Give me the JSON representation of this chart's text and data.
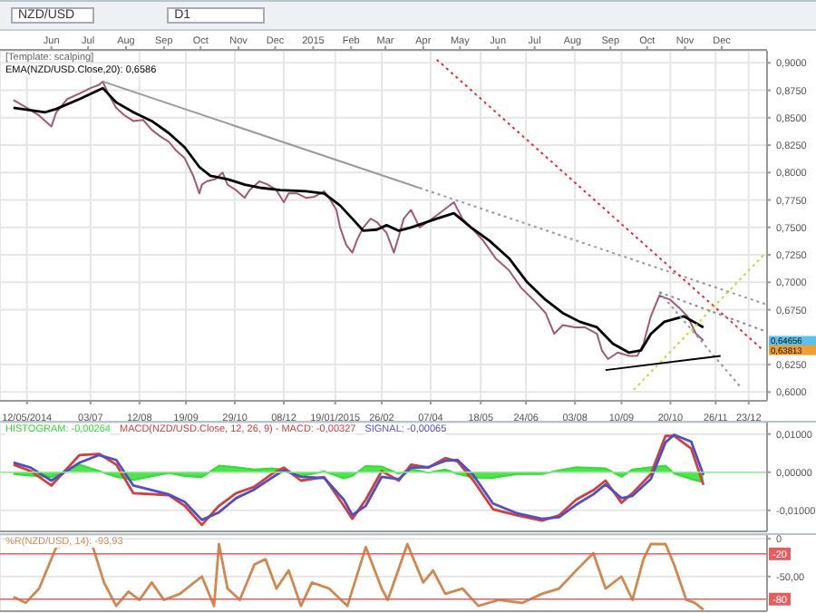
{
  "chart_data": [
    {
      "type": "line",
      "title": "NZD/USD",
      "subtitle": "D1",
      "annotations": [
        "[Template: scalping]",
        {
          "text": "0,64656",
          "x": "2016-01-07",
          "y": 0.64656
        },
        {
          "text": "0,63813",
          "x": "2016-01-07",
          "y": 0.63813
        }
      ],
      "xlim": [
        "2014-04-20",
        "2016-01-07"
      ],
      "x2lim": [
        "2014-04-20",
        "2016-01-07"
      ],
      "xticks": [
        {
          "value": "2014-05-12",
          "label": "12/05/2014"
        },
        {
          "value": "2014-07-03",
          "label": "03/07"
        },
        {
          "value": "2014-08-12",
          "label": "12/08"
        },
        {
          "value": "2014-09-19",
          "label": "19/09"
        },
        {
          "value": "2014-10-29",
          "label": "29/10"
        },
        {
          "value": "2014-12-08",
          "label": "08/12"
        },
        {
          "value": "2015-01-19",
          "label": "19/01/2015"
        },
        {
          "value": "2015-02-26",
          "label": "26/02"
        },
        {
          "value": "2015-04-07",
          "label": "07/04"
        },
        {
          "value": "2015-05-18",
          "label": "18/05"
        },
        {
          "value": "2015-06-24",
          "label": "24/06"
        },
        {
          "value": "2015-08-03",
          "label": "03/08"
        },
        {
          "value": "2015-09-10",
          "label": "10/09"
        },
        {
          "value": "2015-10-20",
          "label": "20/10"
        },
        {
          "value": "2015-11-26",
          "label": "26/11"
        },
        {
          "value": "2015-12-23",
          "label": "23/12"
        }
      ],
      "x2ticks": [
        {
          "value": "2014-06-01",
          "label": "Jun"
        },
        {
          "value": "2014-07-01",
          "label": "Jul"
        },
        {
          "value": "2014-08-01",
          "label": "Aug"
        },
        {
          "value": "2014-09-01",
          "label": "Sep"
        },
        {
          "value": "2014-10-01",
          "label": "Oct"
        },
        {
          "value": "2014-11-01",
          "label": "Nov"
        },
        {
          "value": "2014-12-01",
          "label": "Dec"
        },
        {
          "value": "2015-01-01",
          "label": "2015"
        },
        {
          "value": "2015-02-01",
          "label": "Feb"
        },
        {
          "value": "2015-03-01",
          "label": "Mar"
        },
        {
          "value": "2015-04-01",
          "label": "Apr"
        },
        {
          "value": "2015-05-01",
          "label": "May"
        },
        {
          "value": "2015-06-01",
          "label": "Jun"
        },
        {
          "value": "2015-07-01",
          "label": "Jul"
        },
        {
          "value": "2015-08-01",
          "label": "Aug"
        },
        {
          "value": "2015-09-01",
          "label": "Sep"
        },
        {
          "value": "2015-10-01",
          "label": "Oct"
        },
        {
          "value": "2015-11-01",
          "label": "Nov"
        },
        {
          "value": "2015-12-01",
          "label": "Dec"
        }
      ],
      "ylim": [
        0.592,
        0.911
      ],
      "yticks": [
        {
          "value": 0.6,
          "label": "0,6000"
        },
        {
          "value": 0.625,
          "label": "0,6250"
        },
        {
          "value": 0.675,
          "label": "0,6750"
        },
        {
          "value": 0.7,
          "label": "0,7000"
        },
        {
          "value": 0.725,
          "label": "0,7250"
        },
        {
          "value": 0.75,
          "label": "0,7500"
        },
        {
          "value": 0.775,
          "label": "0,7750"
        },
        {
          "value": 0.8,
          "label": "0,8000"
        },
        {
          "value": 0.825,
          "label": "0,8250"
        },
        {
          "value": 0.85,
          "label": "0,8500"
        },
        {
          "value": 0.875,
          "label": "0,8750"
        },
        {
          "value": 0.9,
          "label": "0,9000"
        }
      ],
      "grid": true,
      "series": [
        {
          "color": "#a05a78",
          "x": [
            "2014-05-01",
            "2014-05-12",
            "2014-05-22",
            "2014-06-01",
            "2014-06-05",
            "2014-06-14",
            "2014-06-24",
            "2014-07-03",
            "2014-07-10",
            "2014-07-13",
            "2014-07-17",
            "2014-07-24",
            "2014-07-31",
            "2014-08-07",
            "2014-08-15",
            "2014-08-22",
            "2014-08-29",
            "2014-09-05",
            "2014-09-11",
            "2014-09-18",
            "2014-09-25",
            "2014-09-30",
            "2014-10-02",
            "2014-10-06",
            "2014-10-13",
            "2014-10-19",
            "2014-10-23",
            "2014-10-30",
            "2014-11-06",
            "2014-11-10",
            "2014-11-18",
            "2014-11-25",
            "2014-12-02",
            "2014-12-08",
            "2014-12-12",
            "2014-12-19",
            "2014-12-26",
            "2015-01-02",
            "2015-01-10",
            "2015-01-14",
            "2015-01-20",
            "2015-01-23",
            "2015-01-28",
            "2015-02-02",
            "2015-02-06",
            "2015-02-11",
            "2015-02-17",
            "2015-02-22",
            "2015-02-26",
            "2015-03-02",
            "2015-03-08",
            "2015-03-12",
            "2015-03-16",
            "2015-03-22",
            "2015-03-29",
            "2015-04-12",
            "2015-04-26",
            "2015-05-03",
            "2015-05-10",
            "2015-05-20",
            "2015-05-30",
            "2015-06-10",
            "2015-06-20",
            "2015-06-30",
            "2015-07-10",
            "2015-07-17",
            "2015-07-24",
            "2015-08-03",
            "2015-08-11",
            "2015-08-21",
            "2015-08-25",
            "2015-08-30",
            "2015-09-07",
            "2015-09-16",
            "2015-09-23",
            "2015-09-28",
            "2015-10-04",
            "2015-10-11",
            "2015-10-20",
            "2015-10-27",
            "2015-11-03",
            "2015-11-10",
            "2015-11-16"
          ],
          "values": [
            0.866,
            0.859,
            0.852,
            0.842,
            0.855,
            0.867,
            0.872,
            0.877,
            0.88,
            0.883,
            0.873,
            0.859,
            0.852,
            0.847,
            0.848,
            0.839,
            0.833,
            0.828,
            0.82,
            0.813,
            0.797,
            0.781,
            0.789,
            0.792,
            0.794,
            0.8,
            0.789,
            0.784,
            0.777,
            0.784,
            0.792,
            0.789,
            0.784,
            0.773,
            0.781,
            0.781,
            0.777,
            0.778,
            0.783,
            0.777,
            0.766,
            0.75,
            0.734,
            0.727,
            0.739,
            0.75,
            0.758,
            0.755,
            0.75,
            0.745,
            0.727,
            0.742,
            0.758,
            0.766,
            0.75,
            0.761,
            0.773,
            0.758,
            0.75,
            0.738,
            0.722,
            0.711,
            0.695,
            0.684,
            0.672,
            0.653,
            0.661,
            0.659,
            0.659,
            0.653,
            0.638,
            0.63,
            0.636,
            0.633,
            0.633,
            0.644,
            0.669,
            0.688,
            0.684,
            0.677,
            0.669,
            0.653,
            0.647
          ]
        },
        {
          "name": "EMA(NZD/USD.Close,20): 0,6586",
          "color": "#000000",
          "x": [
            "2014-05-01",
            "2014-05-27",
            "2014-06-05",
            "2014-06-24",
            "2014-07-13",
            "2014-07-24",
            "2014-08-07",
            "2014-08-22",
            "2014-09-05",
            "2014-09-18",
            "2014-09-30",
            "2014-10-09",
            "2014-10-23",
            "2014-11-06",
            "2014-11-20",
            "2014-12-05",
            "2014-12-26",
            "2015-01-10",
            "2015-01-23",
            "2015-02-02",
            "2015-02-11",
            "2015-02-22",
            "2015-03-02",
            "2015-03-12",
            "2015-03-22",
            "2015-04-12",
            "2015-04-26",
            "2015-05-10",
            "2015-05-25",
            "2015-06-10",
            "2015-06-25",
            "2015-07-10",
            "2015-07-24",
            "2015-08-07",
            "2015-08-21",
            "2015-09-03",
            "2015-09-16",
            "2015-09-26",
            "2015-10-04",
            "2015-10-15",
            "2015-10-31",
            "2015-11-08",
            "2015-11-16"
          ],
          "values": [
            0.859,
            0.855,
            0.858,
            0.867,
            0.877,
            0.864,
            0.855,
            0.847,
            0.836,
            0.823,
            0.805,
            0.797,
            0.794,
            0.789,
            0.786,
            0.784,
            0.783,
            0.781,
            0.77,
            0.758,
            0.747,
            0.748,
            0.752,
            0.747,
            0.75,
            0.758,
            0.763,
            0.75,
            0.738,
            0.722,
            0.7,
            0.684,
            0.672,
            0.664,
            0.659,
            0.644,
            0.636,
            0.638,
            0.653,
            0.664,
            0.669,
            0.664,
            0.659
          ]
        },
        {
          "color": "#9a9a9a",
          "x": [
            "2014-07-13",
            "2015-03-29"
          ],
          "values": [
            0.883,
            0.786
          ]
        },
        {
          "color": "#9a9a9a",
          "line_style": "dotted",
          "x": [
            "2015-03-29",
            "2016-01-06"
          ],
          "values": [
            0.786,
            0.68
          ]
        },
        {
          "color": "#e03030",
          "line_style": "dotted",
          "x": [
            "2015-04-12",
            "2016-01-04"
          ],
          "values": [
            0.903,
            0.638
          ]
        },
        {
          "color": "#d0d040",
          "line_style": "dotted",
          "x": [
            "2015-09-20",
            "2016-01-06"
          ],
          "values": [
            0.602,
            0.727
          ]
        },
        {
          "color": "#8a8a9a",
          "line_style": "dotted",
          "x": [
            "2015-10-11",
            "2016-01-04"
          ],
          "values": [
            0.691,
            0.656
          ]
        },
        {
          "color": "#8a9aaa",
          "line_style": "dotted",
          "x": [
            "2015-10-11",
            "2015-12-16"
          ],
          "values": [
            0.691,
            0.605
          ]
        },
        {
          "color": "#000000",
          "x": [
            "2015-08-28",
            "2015-11-30"
          ],
          "values": [
            0.62,
            0.633
          ]
        }
      ]
    },
    {
      "type": "line",
      "tick_labels": "y",
      "grid": true,
      "xlim": [
        "2014-04-20",
        "2016-01-07"
      ],
      "xticks": [
        {
          "value": "2014-05-12",
          "label": null
        },
        {
          "value": "2014-07-03",
          "label": null
        },
        {
          "value": "2014-08-12",
          "label": null
        },
        {
          "value": "2014-09-19",
          "label": null
        },
        {
          "value": "2014-10-29",
          "label": null
        },
        {
          "value": "2014-12-08",
          "label": null
        },
        {
          "value": "2015-01-19",
          "label": null
        },
        {
          "value": "2015-02-26",
          "label": null
        },
        {
          "value": "2015-04-07",
          "label": null
        },
        {
          "value": "2015-05-18",
          "label": null
        },
        {
          "value": "2015-06-24",
          "label": null
        },
        {
          "value": "2015-08-03",
          "label": null
        },
        {
          "value": "2015-09-10",
          "label": null
        },
        {
          "value": "2015-10-20",
          "label": null
        },
        {
          "value": "2015-11-26",
          "label": null
        },
        {
          "value": "2015-12-23",
          "label": null
        }
      ],
      "ylim": [
        -0.0155,
        0.013
      ],
      "yticks": [
        {
          "value": -0.01,
          "label": "-0,01000"
        },
        {
          "value": 0,
          "label": "0,00000"
        },
        {
          "value": 0.01,
          "label": "0,01000"
        }
      ],
      "ref_lines": [
        {
          "axis": "y",
          "value": 0,
          "color": "#9be89b"
        }
      ],
      "x": [
        "2014-05-01",
        "2014-05-15",
        "2014-06-01",
        "2014-06-24",
        "2014-07-10",
        "2014-07-24",
        "2014-08-07",
        "2014-09-05",
        "2014-09-18",
        "2014-10-02",
        "2014-10-16",
        "2014-10-30",
        "2014-11-14",
        "2014-11-28",
        "2014-12-08",
        "2014-12-22",
        "2015-01-10",
        "2015-01-26",
        "2015-02-02",
        "2015-02-13",
        "2015-02-26",
        "2015-03-12",
        "2015-03-22",
        "2015-04-05",
        "2015-04-19",
        "2015-04-29",
        "2015-05-12",
        "2015-05-28",
        "2015-06-17",
        "2015-07-07",
        "2015-07-21",
        "2015-08-04",
        "2015-08-18",
        "2015-08-28",
        "2015-09-10",
        "2015-09-19",
        "2015-10-04",
        "2015-10-16",
        "2015-10-23",
        "2015-11-06",
        "2015-11-16"
      ],
      "series": [
        {
          "name": "HISTOGRAM: -0,00264",
          "type": "area",
          "color": "#33dd33",
          "values": [
            -0.0005,
            -0.0009,
            -0.0013,
            0.002,
            0.0003,
            -0.0012,
            -0.002,
            -0.0002,
            -0.001,
            -0.0013,
            0.0017,
            0.0013,
            0.0007,
            0.001,
            0.0007,
            -0.001,
            0.0002,
            -0.0016,
            -0.001,
            0.0016,
            0.0015,
            -0.0004,
            0.0008,
            -0.0001,
            0.0007,
            -0.0004,
            -0.0014,
            -0.0015,
            -0.0005,
            -0.0005,
            0.0005,
            0.0013,
            0.0011,
            0.001,
            -0.0012,
            0.0007,
            0.0013,
            0.0017,
            -0.0003,
            -0.0018,
            -0.0026
          ]
        },
        {
          "name": "MACD(NZD/USD.Close, 12, 26, 9) - MACD: -0,00327",
          "color": "#d04040",
          "values": [
            0.002,
            0.0003,
            -0.0035,
            0.0045,
            0.0048,
            0.002,
            -0.0055,
            -0.006,
            -0.0088,
            -0.0138,
            -0.0088,
            -0.0055,
            -0.0038,
            -0.0005,
            0.0012,
            -0.0022,
            -0.0013,
            -0.0088,
            -0.0122,
            -0.0072,
            0.0003,
            -0.0022,
            0.002,
            0.0012,
            0.0037,
            0.0028,
            -0.0022,
            -0.0097,
            -0.0113,
            -0.0127,
            -0.0113,
            -0.0072,
            -0.0047,
            -0.0022,
            -0.008,
            -0.0055,
            -0.0005,
            0.0095,
            0.0095,
            0.0062,
            -0.0033
          ]
        },
        {
          "name": "SIGNAL: -0,00065",
          "color": "#5050c0",
          "values": [
            0.0025,
            0.0012,
            -0.0022,
            0.0025,
            0.0045,
            0.0032,
            -0.0035,
            -0.0058,
            -0.0078,
            -0.0125,
            -0.0105,
            -0.0068,
            -0.0045,
            -0.0015,
            0.0005,
            -0.0012,
            -0.0015,
            -0.0072,
            -0.0112,
            -0.0088,
            -0.0012,
            -0.0018,
            0.0012,
            0.0013,
            0.003,
            0.0032,
            -0.0008,
            -0.0082,
            -0.0108,
            -0.0122,
            -0.0118,
            -0.0085,
            -0.0058,
            -0.0032,
            -0.0068,
            -0.0062,
            -0.0018,
            0.0078,
            0.0098,
            0.008,
            -0.0007
          ]
        }
      ]
    },
    {
      "type": "line",
      "tick_labels": "y",
      "grid": true,
      "xlim": [
        "2014-04-20",
        "2016-01-07"
      ],
      "xticks": [
        {
          "value": "2014-05-12",
          "label": null
        },
        {
          "value": "2014-07-03",
          "label": null
        },
        {
          "value": "2014-08-12",
          "label": null
        },
        {
          "value": "2014-09-19",
          "label": null
        },
        {
          "value": "2014-10-29",
          "label": null
        },
        {
          "value": "2014-12-08",
          "label": null
        },
        {
          "value": "2015-01-19",
          "label": null
        },
        {
          "value": "2015-02-26",
          "label": null
        },
        {
          "value": "2015-04-07",
          "label": null
        },
        {
          "value": "2015-05-18",
          "label": null
        },
        {
          "value": "2015-06-24",
          "label": null
        },
        {
          "value": "2015-08-03",
          "label": null
        },
        {
          "value": "2015-09-10",
          "label": null
        },
        {
          "value": "2015-10-20",
          "label": null
        },
        {
          "value": "2015-11-26",
          "label": null
        },
        {
          "value": "2015-12-23",
          "label": null
        }
      ],
      "ylim": [
        -96,
        5
      ],
      "yticks": [
        {
          "value": 0,
          "label": "0"
        },
        {
          "value": -50,
          "label": "-50,00"
        }
      ],
      "ref_lines": [
        {
          "axis": "y",
          "value": -20,
          "label": "-20",
          "color": "#e06060"
        },
        {
          "axis": "y",
          "value": -80,
          "label": "-80",
          "color": "#e06060"
        }
      ],
      "series": [
        {
          "name": "%R(NZD/USD, 14): -93,93",
          "color": "#d08850",
          "x": [
            "2014-05-01",
            "2014-05-11",
            "2014-05-22",
            "2014-06-05",
            "2014-06-24",
            "2014-07-05",
            "2014-07-14",
            "2014-07-24",
            "2014-08-03",
            "2014-08-12",
            "2014-08-22",
            "2014-09-01",
            "2014-09-14",
            "2014-10-02",
            "2014-10-12",
            "2014-10-16",
            "2014-10-23",
            "2014-11-02",
            "2014-11-14",
            "2014-11-23",
            "2014-12-02",
            "2014-12-12",
            "2014-12-22",
            "2014-12-31",
            "2015-01-14",
            "2015-01-29",
            "2015-02-13",
            "2015-02-26",
            "2015-03-03",
            "2015-03-19",
            "2015-04-01",
            "2015-04-09",
            "2015-04-19",
            "2015-05-03",
            "2015-05-16",
            "2015-06-02",
            "2015-06-21",
            "2015-07-07",
            "2015-07-21",
            "2015-08-04",
            "2015-08-18",
            "2015-08-28",
            "2015-09-10",
            "2015-09-19",
            "2015-09-28",
            "2015-10-04",
            "2015-10-16",
            "2015-10-23",
            "2015-11-02",
            "2015-11-09",
            "2015-11-16"
          ],
          "values": [
            -77,
            -85,
            -66,
            -11,
            -7,
            -11,
            -58,
            -89,
            -70,
            -81,
            -58,
            -81,
            -73,
            -50,
            -89,
            -7,
            -66,
            -81,
            -34,
            -27,
            -66,
            -42,
            -89,
            -58,
            -66,
            -89,
            -11,
            -66,
            -81,
            -7,
            -58,
            -42,
            -73,
            -66,
            -89,
            -81,
            -85,
            -73,
            -66,
            -42,
            -19,
            -66,
            -50,
            -81,
            -27,
            -7,
            -7,
            -34,
            -81,
            -85,
            -94
          ]
        }
      ]
    }
  ]
}
